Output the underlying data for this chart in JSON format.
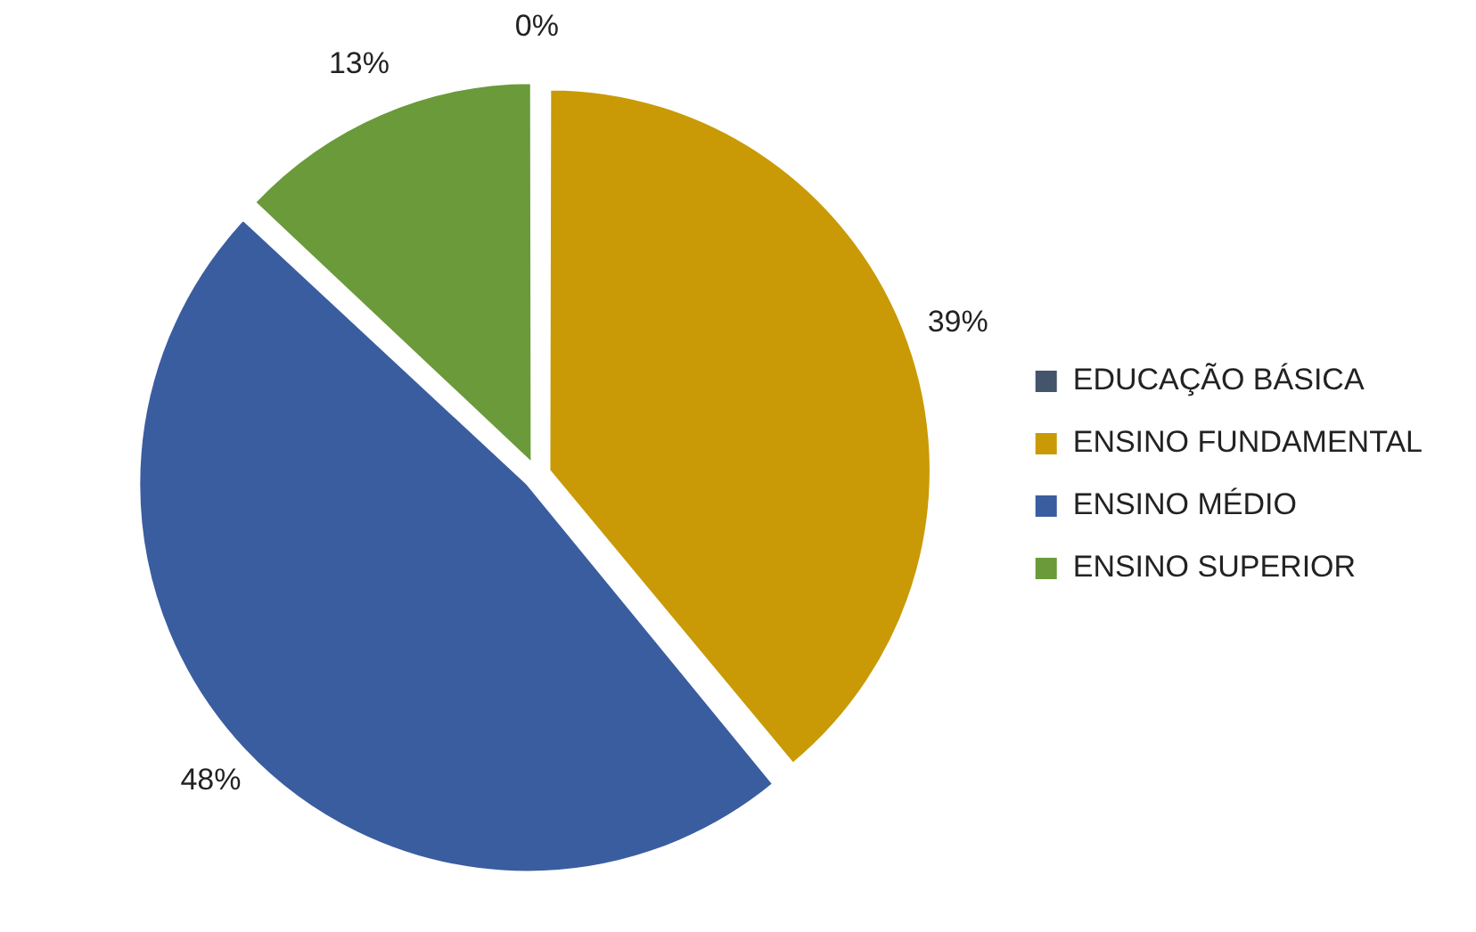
{
  "chart_data": {
    "type": "pie",
    "categories": [
      "EDUCAÇÃO BÁSICA",
      "ENSINO FUNDAMENTAL",
      "ENSINO MÉDIO",
      "ENSINO SUPERIOR"
    ],
    "values": [
      0,
      39,
      48,
      13
    ],
    "value_labels": [
      "0%",
      "39%",
      "48%",
      "13%"
    ],
    "colors": [
      "#44546a",
      "#c99a06",
      "#3a5da0",
      "#6a9a3a"
    ],
    "legend": "right"
  }
}
